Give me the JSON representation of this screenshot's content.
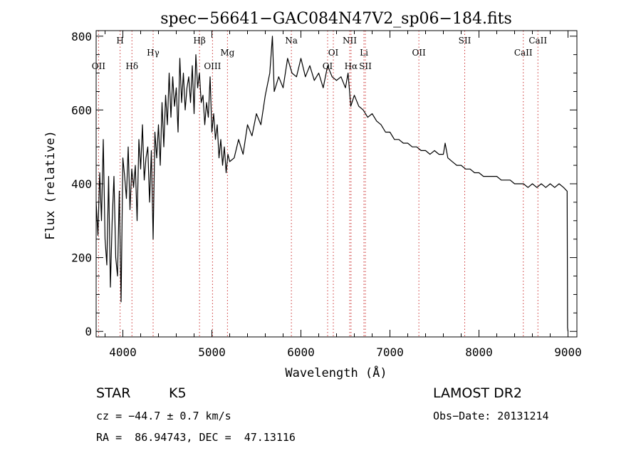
{
  "chart_data": {
    "type": "line",
    "title": "spec−56641−GAC084N47V2_sp06−184.fits",
    "xlabel": "Wavelength (Å)",
    "ylabel": "Flux (relative)",
    "xlim": [
      3700,
      9100
    ],
    "ylim": [
      -15,
      815
    ],
    "x_ticks": [
      4000,
      5000,
      6000,
      7000,
      8000,
      9000
    ],
    "y_ticks": [
      0,
      200,
      400,
      600,
      800
    ],
    "grid": false,
    "line_color": "#000000",
    "line_marker_color": "#cc3333",
    "spectral_lines": [
      {
        "label": "OII",
        "wavelength": 3727,
        "row": 3
      },
      {
        "label": "H",
        "wavelength": 3969,
        "row": 0
      },
      {
        "label": "Hδ",
        "wavelength": 4102,
        "row": 3
      },
      {
        "label": "Hγ",
        "wavelength": 4340,
        "row": 1
      },
      {
        "label": "Hβ",
        "wavelength": 4861,
        "row": 0
      },
      {
        "label": "OIII",
        "wavelength": 5007,
        "row": 3
      },
      {
        "label": "Mg",
        "wavelength": 5175,
        "row": 1
      },
      {
        "label": "Na",
        "wavelength": 5893,
        "row": 0
      },
      {
        "label": "OI",
        "wavelength": 6300,
        "row": 3
      },
      {
        "label": "OI",
        "wavelength": 6364,
        "row": 1
      },
      {
        "label": "NII",
        "wavelength": 6548,
        "row": 0
      },
      {
        "label": "Hα",
        "wavelength": 6563,
        "row": 3
      },
      {
        "label": "Li",
        "wavelength": 6708,
        "row": 1
      },
      {
        "label": "SII",
        "wavelength": 6724,
        "row": 3
      },
      {
        "label": "OII",
        "wavelength": 7325,
        "row": 1
      },
      {
        "label": "SII",
        "wavelength": 7840,
        "row": 0
      },
      {
        "label": "CaII",
        "wavelength": 8498,
        "row": 1
      },
      {
        "label": "CaII",
        "wavelength": 8662,
        "row": 0
      }
    ],
    "series": [
      {
        "x": [
          3700,
          3720,
          3740,
          3760,
          3780,
          3800,
          3820,
          3840,
          3860,
          3880,
          3900,
          3920,
          3940,
          3960,
          3980,
          4000,
          4020,
          4040,
          4060,
          4080,
          4100,
          4120,
          4140,
          4160,
          4180,
          4200,
          4220,
          4240,
          4260,
          4280,
          4300,
          4320,
          4340,
          4360,
          4380,
          4400,
          4420,
          4440,
          4460,
          4480,
          4500,
          4520,
          4540,
          4560,
          4580,
          4600,
          4620,
          4640,
          4660,
          4680,
          4700,
          4720,
          4740,
          4760,
          4780,
          4800,
          4820,
          4840,
          4860,
          4880,
          4900,
          4920,
          4940,
          4960,
          4980,
          5000,
          5020,
          5040,
          5060,
          5080,
          5100,
          5120,
          5140,
          5160,
          5180,
          5200,
          5250,
          5300,
          5350,
          5400,
          5450,
          5500,
          5550,
          5600,
          5650,
          5680,
          5700,
          5750,
          5800,
          5850,
          5900,
          5950,
          6000,
          6050,
          6100,
          6150,
          6200,
          6250,
          6300,
          6350,
          6400,
          6450,
          6500,
          6530,
          6560,
          6600,
          6650,
          6700,
          6750,
          6800,
          6850,
          6900,
          6950,
          7000,
          7050,
          7100,
          7150,
          7200,
          7250,
          7300,
          7350,
          7400,
          7450,
          7500,
          7550,
          7600,
          7620,
          7650,
          7700,
          7750,
          7800,
          7850,
          7900,
          7950,
          8000,
          8050,
          8100,
          8150,
          8200,
          8250,
          8300,
          8350,
          8400,
          8450,
          8500,
          8550,
          8600,
          8650,
          8700,
          8750,
          8800,
          8850,
          8900,
          8950,
          8990,
          8995,
          9000
        ],
        "y": [
          350,
          260,
          430,
          300,
          520,
          250,
          180,
          420,
          120,
          300,
          420,
          200,
          150,
          380,
          80,
          470,
          420,
          360,
          500,
          330,
          440,
          390,
          450,
          300,
          520,
          440,
          560,
          410,
          470,
          500,
          350,
          490,
          250,
          540,
          470,
          560,
          450,
          620,
          500,
          640,
          560,
          700,
          580,
          690,
          610,
          660,
          540,
          740,
          620,
          700,
          600,
          660,
          690,
          620,
          720,
          590,
          750,
          660,
          700,
          620,
          640,
          560,
          620,
          580,
          690,
          540,
          590,
          520,
          560,
          470,
          520,
          450,
          500,
          430,
          480,
          460,
          470,
          520,
          480,
          560,
          530,
          590,
          560,
          640,
          700,
          800,
          650,
          690,
          660,
          740,
          700,
          690,
          740,
          690,
          720,
          680,
          700,
          660,
          720,
          690,
          680,
          690,
          660,
          700,
          610,
          640,
          610,
          600,
          580,
          590,
          570,
          560,
          540,
          540,
          520,
          520,
          510,
          510,
          500,
          500,
          490,
          490,
          480,
          490,
          480,
          480,
          510,
          470,
          460,
          450,
          450,
          440,
          440,
          430,
          430,
          420,
          420,
          420,
          420,
          410,
          410,
          410,
          400,
          400,
          400,
          390,
          400,
          390,
          400,
          390,
          400,
          390,
          400,
          390,
          380,
          10,
          0
        ]
      }
    ]
  },
  "info": {
    "object_class": "STAR",
    "subclass": "K5",
    "survey": "LAMOST DR2",
    "cz": "cz = −44.7 ± 0.7 km/s",
    "obs_date": "Obs−Date: 20131214",
    "coords": "RA =  86.94743, DEC =  47.13116"
  }
}
